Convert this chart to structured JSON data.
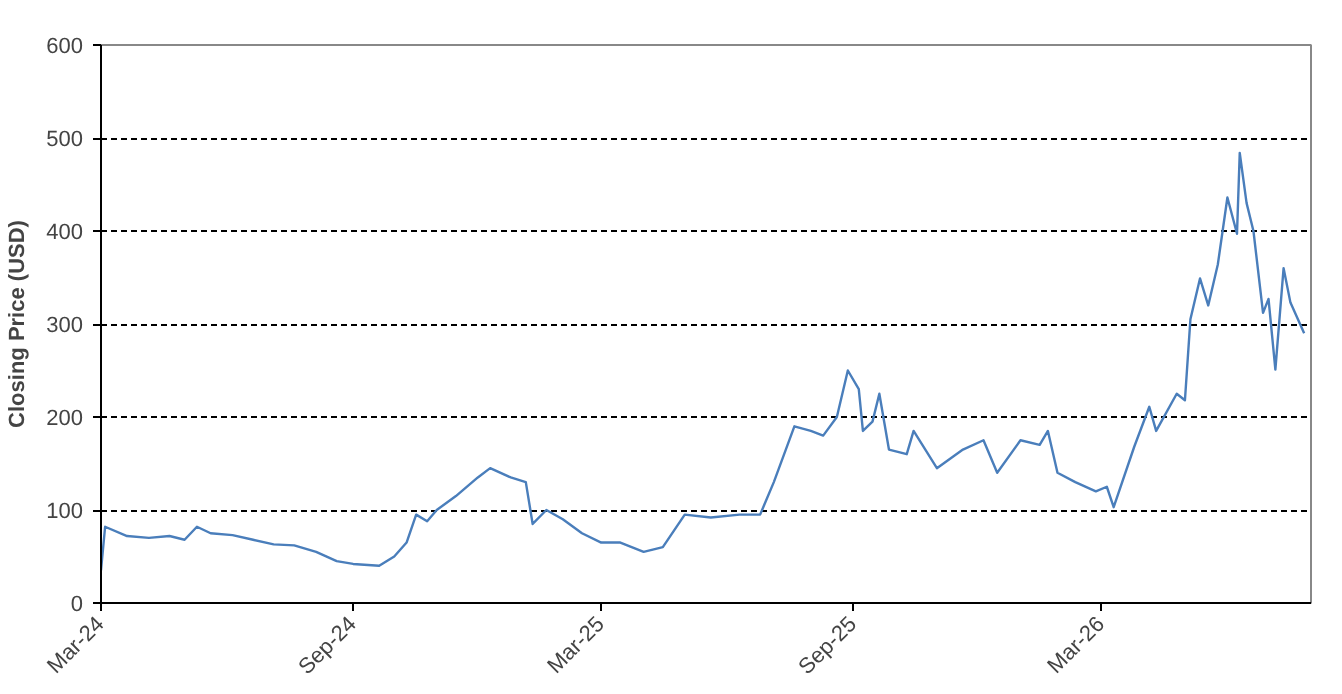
{
  "chart_data": {
    "type": "line",
    "ylabel": "Closing Price (USD)",
    "x": [
      "2024-03-01",
      "2024-03-04",
      "2024-03-20",
      "2024-04-05",
      "2024-04-20",
      "2024-05-01",
      "2024-05-10",
      "2024-05-20",
      "2024-06-05",
      "2024-06-20",
      "2024-07-05",
      "2024-07-20",
      "2024-08-05",
      "2024-08-20",
      "2024-09-01",
      "2024-09-20",
      "2024-10-01",
      "2024-10-10",
      "2024-10-17",
      "2024-10-25",
      "2024-11-01",
      "2024-11-15",
      "2024-12-01",
      "2024-12-10",
      "2024-12-25",
      "2025-01-05",
      "2025-01-10",
      "2025-01-20",
      "2025-02-01",
      "2025-02-15",
      "2025-03-01",
      "2025-03-15",
      "2025-04-01",
      "2025-04-15",
      "2025-05-01",
      "2025-05-20",
      "2025-06-10",
      "2025-06-25",
      "2025-07-05",
      "2025-07-20",
      "2025-08-01",
      "2025-08-10",
      "2025-08-20",
      "2025-08-28",
      "2025-09-05",
      "2025-09-08",
      "2025-09-15",
      "2025-09-20",
      "2025-09-27",
      "2025-10-10",
      "2025-10-15",
      "2025-11-01",
      "2025-11-20",
      "2025-12-05",
      "2025-12-15",
      "2026-01-01",
      "2026-01-15",
      "2026-01-21",
      "2026-01-28",
      "2026-02-10",
      "2026-02-25",
      "2026-03-05",
      "2026-03-10",
      "2026-03-25",
      "2026-04-05",
      "2026-04-10",
      "2026-04-25",
      "2026-05-01",
      "2026-05-05",
      "2026-05-12",
      "2026-05-18",
      "2026-05-25",
      "2026-06-01",
      "2026-06-08",
      "2026-06-10",
      "2026-06-15",
      "2026-06-20",
      "2026-06-27",
      "2026-07-01",
      "2026-07-06",
      "2026-07-12",
      "2026-07-17",
      "2026-07-27"
    ],
    "series": [
      {
        "color": "#4a7ebb",
        "values": [
          35,
          82,
          72,
          70,
          72,
          68,
          82,
          75,
          73,
          68,
          63,
          62,
          55,
          45,
          42,
          40,
          50,
          65,
          95,
          88,
          100,
          115,
          135,
          145,
          135,
          130,
          85,
          100,
          90,
          75,
          65,
          65,
          55,
          60,
          95,
          92,
          95,
          95,
          130,
          190,
          185,
          180,
          200,
          250,
          230,
          185,
          195,
          225,
          165,
          160,
          185,
          145,
          165,
          175,
          140,
          175,
          170,
          185,
          140,
          130,
          120,
          125,
          103,
          168,
          211,
          185,
          225,
          218,
          305,
          349,
          320,
          364,
          436,
          397,
          484,
          430,
          400,
          312,
          327,
          251,
          360,
          323,
          290
        ]
      }
    ],
    "xlim": [
      "2024-03-01",
      "2026-08-01"
    ],
    "xticks": [
      {
        "value": "2024-03-01",
        "label": "Mar-24"
      },
      {
        "value": "2024-09-01",
        "label": "Sep-24"
      },
      {
        "value": "2025-03-01",
        "label": "Mar-25"
      },
      {
        "value": "2025-09-01",
        "label": "Sep-25"
      },
      {
        "value": "2026-03-01",
        "label": "Mar-26"
      }
    ],
    "ylim": [
      0,
      600
    ],
    "yticks": [
      0,
      100,
      200,
      300,
      400,
      500,
      600
    ],
    "grid": "y",
    "marker": "none",
    "line_style": "solid"
  }
}
